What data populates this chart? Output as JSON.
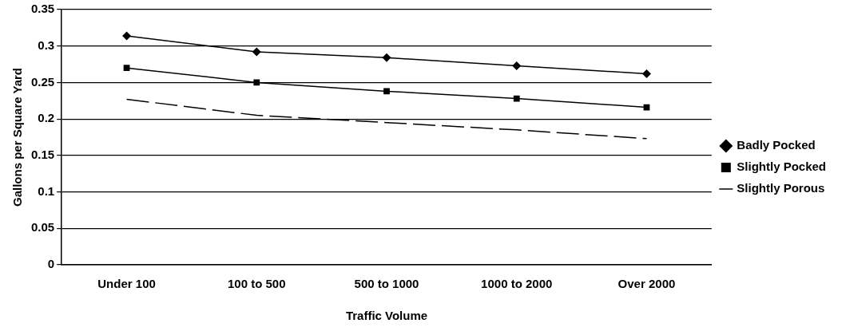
{
  "chart_data": {
    "type": "line",
    "xlabel": "Traffic Volume",
    "ylabel": "Gallons per Square Yard",
    "categories": [
      "Under 100",
      "100 to 500",
      "500 to 1000",
      "1000 to 2000",
      "Over 2000"
    ],
    "series": [
      {
        "name": "Badly Pocked",
        "color": "#000000",
        "marker": "diamond",
        "line_style": "solid",
        "values": [
          0.314,
          0.292,
          0.284,
          0.273,
          0.262
        ]
      },
      {
        "name": "Slightly Pocked",
        "color": "#000000",
        "marker": "square",
        "line_style": "solid",
        "values": [
          0.27,
          0.25,
          0.238,
          0.228,
          0.216
        ]
      },
      {
        "name": "Slightly Porous",
        "color": "#000000",
        "marker": "none",
        "line_style": "dashed",
        "values": [
          0.227,
          0.205,
          0.195,
          0.185,
          0.173
        ]
      }
    ],
    "ylim": [
      0,
      0.35
    ],
    "yticks": [
      0,
      0.05,
      0.1,
      0.15,
      0.2,
      0.25,
      0.3,
      0.35
    ],
    "grid": "y",
    "legend": "right"
  }
}
